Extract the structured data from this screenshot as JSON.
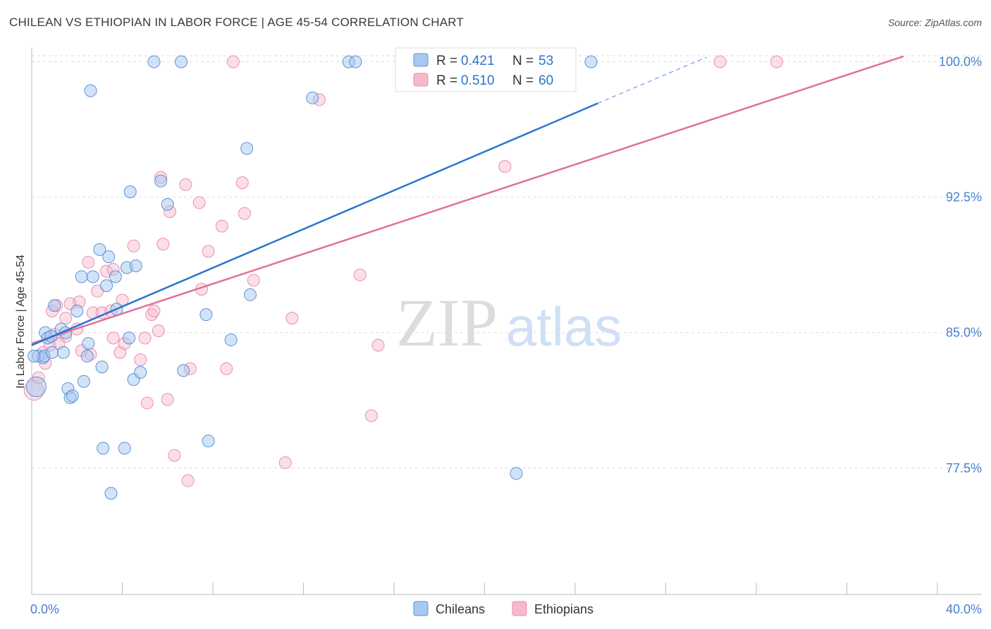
{
  "header": {
    "title": "CHILEAN VS ETHIOPIAN IN LABOR FORCE | AGE 45-54 CORRELATION CHART",
    "source": "Source: ZipAtlas.com"
  },
  "watermark": {
    "zip": "ZIP",
    "atlas": "atlas"
  },
  "colors": {
    "blue_fill": "#a8c8f0",
    "blue_stroke": "#5b93d9",
    "blue_line": "#2a74d0",
    "pink_fill": "#f6b8cc",
    "pink_stroke": "#ea8fae",
    "pink_line": "#e0709a",
    "axis_text": "#4a7fd0",
    "grid": "#dddddd"
  },
  "chart_data": {
    "type": "scatter",
    "title": "CHILEAN VS ETHIOPIAN IN LABOR FORCE | AGE 45-54 CORRELATION CHART",
    "xlabel": "",
    "ylabel": "In Labor Force | Age 45-54",
    "xlim": [
      0,
      40
    ],
    "ylim": [
      70.5,
      101
    ],
    "x_tick_labels": [
      "0.0%",
      "40.0%"
    ],
    "y_ticks": [
      77.5,
      85.0,
      92.5,
      100.0
    ],
    "y_tick_labels": [
      "77.5%",
      "85.0%",
      "92.5%",
      "100.0%"
    ],
    "legend_position": "top-center",
    "legend": [
      {
        "r_label": "R = ",
        "r_value": "0.421",
        "n_label": "N = ",
        "n_value": "53"
      },
      {
        "r_label": "R = ",
        "r_value": "0.510",
        "n_label": "N = ",
        "n_value": "60"
      }
    ],
    "bottom_legend": [
      "Chileans",
      "Ethiopians"
    ],
    "series": [
      {
        "name": "Chileans",
        "points": [
          [
            0.2,
            82.0
          ],
          [
            0.3,
            83.7
          ],
          [
            0.5,
            83.6
          ],
          [
            0.55,
            83.7
          ],
          [
            0.6,
            85.0
          ],
          [
            0.7,
            84.7
          ],
          [
            0.85,
            84.8
          ],
          [
            0.9,
            83.9
          ],
          [
            1.0,
            86.5
          ],
          [
            1.3,
            85.2
          ],
          [
            1.4,
            83.9
          ],
          [
            1.5,
            85.0
          ],
          [
            1.6,
            81.9
          ],
          [
            1.7,
            81.4
          ],
          [
            1.8,
            81.5
          ],
          [
            2.0,
            86.2
          ],
          [
            2.2,
            88.1
          ],
          [
            2.3,
            82.3
          ],
          [
            2.45,
            83.7
          ],
          [
            2.5,
            84.4
          ],
          [
            2.7,
            88.1
          ],
          [
            2.6,
            98.4
          ],
          [
            3.0,
            89.6
          ],
          [
            3.1,
            83.1
          ],
          [
            3.15,
            78.6
          ],
          [
            3.3,
            87.6
          ],
          [
            3.4,
            89.2
          ],
          [
            3.5,
            76.1
          ],
          [
            3.7,
            88.1
          ],
          [
            3.75,
            86.3
          ],
          [
            4.1,
            78.6
          ],
          [
            4.2,
            88.6
          ],
          [
            4.3,
            84.7
          ],
          [
            4.35,
            92.8
          ],
          [
            4.5,
            82.4
          ],
          [
            4.6,
            88.7
          ],
          [
            4.8,
            82.8
          ],
          [
            5.4,
            100.0
          ],
          [
            5.7,
            93.4
          ],
          [
            6.0,
            92.1
          ],
          [
            6.6,
            100.0
          ],
          [
            6.7,
            82.9
          ],
          [
            7.7,
            86.0
          ],
          [
            7.8,
            79.0
          ],
          [
            8.8,
            84.6
          ],
          [
            9.5,
            95.2
          ],
          [
            9.65,
            87.1
          ],
          [
            12.4,
            98.0
          ],
          [
            14.0,
            100.0
          ],
          [
            14.3,
            100.0
          ],
          [
            21.4,
            77.2
          ],
          [
            24.7,
            100.0
          ],
          [
            0.1,
            83.7
          ]
        ],
        "trend": {
          "x0": 0,
          "y0": 84.3,
          "x1": 25.0,
          "y1": 97.7,
          "dash_to": [
            29.8,
            100.25
          ]
        }
      },
      {
        "name": "Ethiopians",
        "points": [
          [
            0.1,
            81.8
          ],
          [
            0.3,
            82.5
          ],
          [
            0.5,
            83.9
          ],
          [
            0.8,
            84.3
          ],
          [
            0.9,
            86.2
          ],
          [
            1.0,
            84.9
          ],
          [
            1.1,
            86.5
          ],
          [
            1.5,
            85.8
          ],
          [
            1.7,
            86.6
          ],
          [
            2.0,
            85.2
          ],
          [
            2.1,
            86.7
          ],
          [
            2.5,
            88.9
          ],
          [
            2.6,
            83.8
          ],
          [
            2.7,
            86.1
          ],
          [
            2.9,
            87.3
          ],
          [
            3.1,
            86.1
          ],
          [
            3.3,
            88.4
          ],
          [
            3.5,
            86.2
          ],
          [
            3.6,
            88.5
          ],
          [
            3.6,
            84.7
          ],
          [
            3.9,
            83.9
          ],
          [
            4.0,
            86.8
          ],
          [
            4.1,
            84.4
          ],
          [
            4.5,
            89.8
          ],
          [
            4.8,
            83.5
          ],
          [
            5.0,
            84.7
          ],
          [
            5.1,
            81.1
          ],
          [
            5.3,
            86.0
          ],
          [
            5.4,
            86.2
          ],
          [
            5.6,
            85.1
          ],
          [
            5.7,
            93.6
          ],
          [
            5.8,
            89.9
          ],
          [
            6.0,
            81.3
          ],
          [
            6.1,
            91.7
          ],
          [
            6.3,
            78.2
          ],
          [
            6.8,
            93.2
          ],
          [
            6.9,
            76.8
          ],
          [
            7.0,
            83.0
          ],
          [
            7.4,
            92.2
          ],
          [
            7.5,
            87.4
          ],
          [
            7.8,
            89.5
          ],
          [
            8.4,
            90.9
          ],
          [
            8.6,
            83.0
          ],
          [
            8.9,
            100.0
          ],
          [
            9.3,
            93.3
          ],
          [
            9.4,
            91.6
          ],
          [
            9.8,
            87.9
          ],
          [
            11.2,
            77.8
          ],
          [
            11.5,
            85.8
          ],
          [
            12.7,
            97.9
          ],
          [
            14.5,
            88.2
          ],
          [
            15.0,
            80.4
          ],
          [
            15.3,
            84.3
          ],
          [
            20.9,
            94.2
          ],
          [
            30.4,
            100.0
          ],
          [
            32.9,
            100.0
          ],
          [
            1.5,
            84.8
          ],
          [
            2.2,
            84.0
          ],
          [
            1.2,
            84.4
          ],
          [
            0.6,
            83.3
          ]
        ],
        "trend": {
          "x0": 0,
          "y0": 84.4,
          "x1": 38.5,
          "y1": 100.3
        }
      }
    ]
  }
}
